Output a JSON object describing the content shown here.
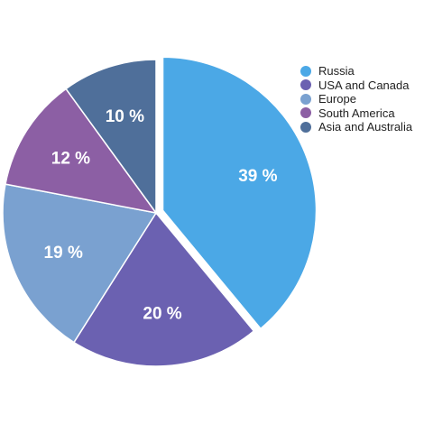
{
  "chart_data": {
    "type": "pie",
    "categories": [
      "Russia",
      "USA and Canada",
      "Europe",
      "South America",
      "Asia and Australia"
    ],
    "values": [
      39,
      20,
      19,
      12,
      10
    ],
    "labels": [
      "39 %",
      "20 %",
      "19 %",
      "12 %",
      "10 %"
    ],
    "colors": [
      "#4ba8e6",
      "#6b61b1",
      "#7aa1d0",
      "#8c5fa4",
      "#4f6f9a"
    ],
    "exploded": [
      "Russia"
    ],
    "legend_position": "top-right",
    "title": ""
  }
}
